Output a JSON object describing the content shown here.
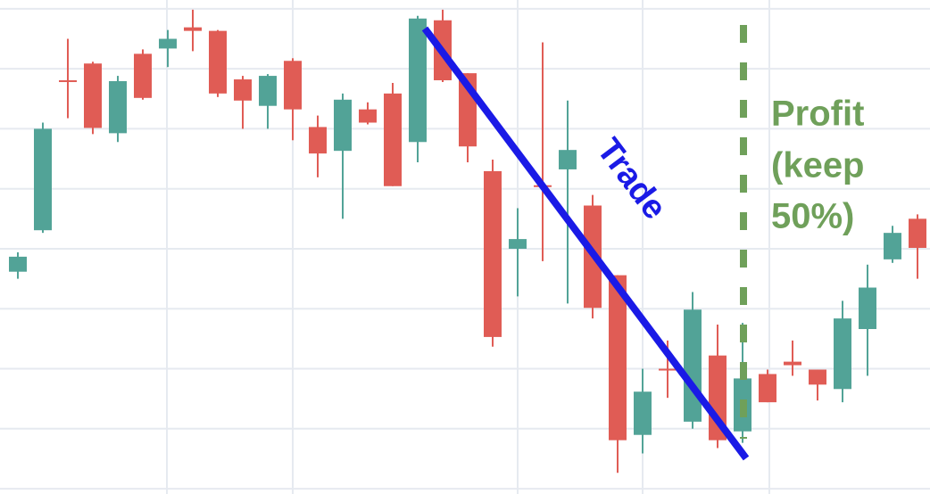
{
  "chart_data": {
    "type": "candlestick",
    "up_color": "#52a397",
    "down_color": "#e05c55",
    "grid": true,
    "show_tick_labels": false,
    "ylim": [
      -6,
      554
    ],
    "yticks": [
      0,
      68,
      136,
      204,
      272,
      340,
      408,
      476,
      544
    ],
    "open": [
      246,
      293,
      463,
      482,
      403,
      493,
      499,
      523,
      519,
      464,
      434,
      485,
      410,
      383,
      430,
      448,
      393,
      531,
      471,
      360,
      272,
      344,
      362,
      321,
      242,
      61,
      136,
      76,
      151,
      65,
      130,
      144,
      135,
      113,
      181,
      260,
      306
    ],
    "high": [
      268,
      415,
      510,
      484,
      468,
      498,
      520,
      543,
      520,
      468,
      470,
      488,
      423,
      448,
      438,
      460,
      536,
      543,
      471,
      373,
      318,
      506,
      440,
      333,
      242,
      136,
      168,
      223,
      186,
      188,
      135,
      168,
      135,
      213,
      254,
      298,
      311
    ],
    "low": [
      238,
      290,
      420,
      402,
      393,
      441,
      478,
      496,
      444,
      408,
      408,
      395,
      353,
      306,
      413,
      343,
      370,
      461,
      370,
      161,
      218,
      258,
      210,
      193,
      18,
      40,
      103,
      68,
      46,
      52,
      98,
      128,
      100,
      98,
      128,
      256,
      238
    ],
    "close": [
      263,
      408,
      461,
      409,
      462,
      443,
      510,
      519,
      448,
      440,
      468,
      430,
      380,
      441,
      415,
      343,
      533,
      463,
      388,
      172,
      283,
      342,
      384,
      205,
      55,
      110,
      134,
      203,
      55,
      125,
      98,
      140,
      118,
      193,
      228,
      290,
      273
    ],
    "annotations": {
      "trade": {
        "text": "Trade",
        "color": "#1a1ae6"
      },
      "profit": {
        "lines": [
          "Profit",
          "(keep",
          "50%)"
        ],
        "color": "#6fa05a"
      }
    }
  }
}
